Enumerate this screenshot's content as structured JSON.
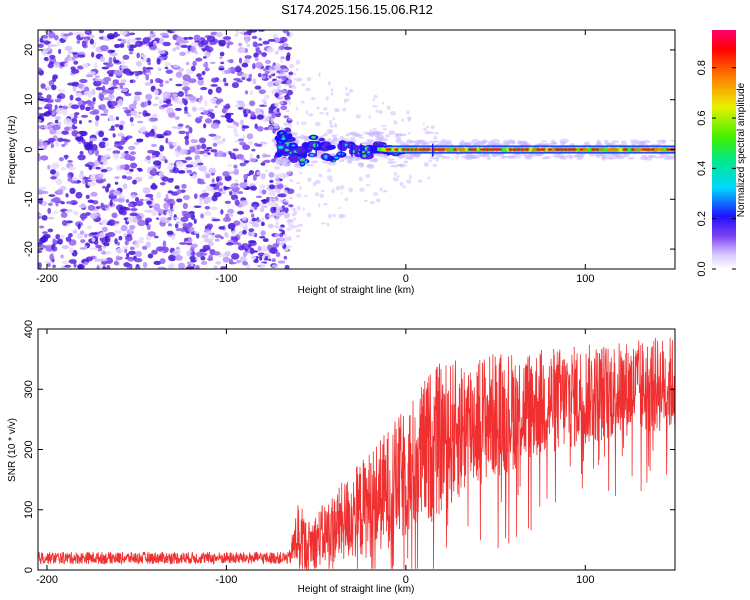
{
  "figure": {
    "title": "S174.2025.156.15.06.R12"
  },
  "chart_data": [
    {
      "type": "heatmap",
      "xlabel": "Height of straight line (km)",
      "ylabel": "Frequency (Hz)",
      "xlim": [
        -205,
        150
      ],
      "ylim": [
        -24,
        24
      ],
      "xticks": [
        -200,
        -100,
        0,
        100
      ],
      "yticks": [
        -20,
        -10,
        0,
        10,
        20
      ],
      "colorbar": {
        "label": "Normalized spectral amplitude",
        "range": [
          0,
          0.95
        ],
        "ticks": [
          0.0,
          0.2,
          0.4,
          0.6,
          0.8
        ],
        "colormap": [
          "#ffffff",
          "#c8b0ff",
          "#6a2cf0",
          "#1a10ff",
          "#00d8ff",
          "#00e880",
          "#50f000",
          "#f0e800",
          "#ff8000",
          "#ff0000",
          "#ff0070"
        ]
      },
      "regions": [
        {
          "x_range": [
            -205,
            -72
          ],
          "description": "dense purple noise speckle"
        },
        {
          "x_range": [
            -72,
            0
          ],
          "center_hz": 0,
          "description": "disturbed carrier with blue/green blobs"
        },
        {
          "x_range": [
            0,
            150
          ],
          "center_hz": 0,
          "description": "stable carrier, red core"
        }
      ]
    },
    {
      "type": "line",
      "xlabel": "Height of straight line (km)",
      "ylabel": "SNR (10 * v/v)",
      "xlim": [
        -205,
        150
      ],
      "ylim": [
        0,
        400
      ],
      "xticks": [
        -200,
        -100,
        0,
        100
      ],
      "yticks": [
        0,
        100,
        200,
        300,
        400
      ],
      "color": "#f03030",
      "envelope": [
        {
          "x": -205,
          "mean": 20,
          "spread": 10
        },
        {
          "x": -65,
          "mean": 20,
          "spread": 10
        },
        {
          "x": -60,
          "mean": 60,
          "spread": 60
        },
        {
          "x": -55,
          "mean": 40,
          "spread": 40
        },
        {
          "x": -40,
          "mean": 70,
          "spread": 60
        },
        {
          "x": -20,
          "mean": 110,
          "spread": 90
        },
        {
          "x": 0,
          "mean": 160,
          "spread": 110
        },
        {
          "x": 15,
          "mean": 210,
          "spread": 130
        },
        {
          "x": 40,
          "mean": 250,
          "spread": 110
        },
        {
          "x": 80,
          "mean": 280,
          "spread": 90
        },
        {
          "x": 120,
          "mean": 300,
          "spread": 80
        },
        {
          "x": 150,
          "mean": 310,
          "spread": 80
        }
      ]
    }
  ]
}
